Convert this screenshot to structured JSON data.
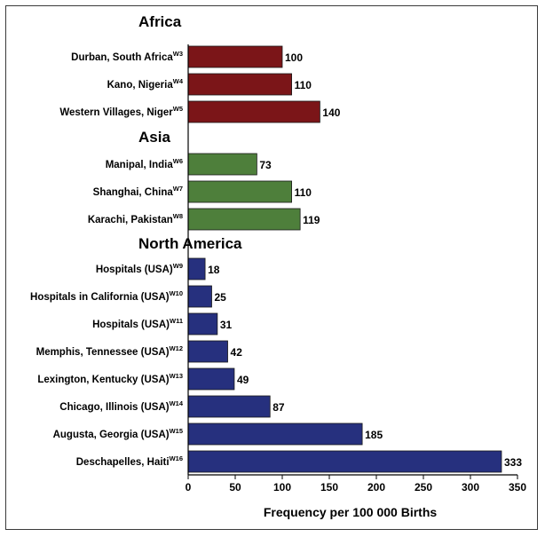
{
  "chart_data": {
    "type": "bar",
    "orientation": "horizontal",
    "xlabel": "Frequency per 100 000 Births",
    "xlim": [
      0,
      350
    ],
    "xticks": [
      0,
      50,
      100,
      150,
      200,
      250,
      300,
      350
    ],
    "grid": false,
    "groups": [
      {
        "name": "Africa",
        "color": "#7b1518",
        "bars": [
          {
            "label": "Durban, South Africa",
            "ref": "W3",
            "value": 100
          },
          {
            "label": "Kano, Nigeria",
            "ref": "W4",
            "value": 110
          },
          {
            "label": "Western Villages, Niger",
            "ref": "W5",
            "value": 140
          }
        ]
      },
      {
        "name": "Asia",
        "color": "#4e7f3b",
        "bars": [
          {
            "label": "Manipal, India",
            "ref": "W6",
            "value": 73
          },
          {
            "label": "Shanghai, China",
            "ref": "W7",
            "value": 110
          },
          {
            "label": "Karachi, Pakistan",
            "ref": "W8",
            "value": 119
          }
        ]
      },
      {
        "name": "North America",
        "color": "#26307e",
        "bars": [
          {
            "label": "Hospitals (USA)",
            "ref": "W9",
            "value": 18
          },
          {
            "label": "Hospitals in California (USA)",
            "ref": "W10",
            "value": 25
          },
          {
            "label": "Hospitals (USA)",
            "ref": "W11",
            "value": 31
          },
          {
            "label": "Memphis, Tennessee (USA)",
            "ref": "W12",
            "value": 42
          },
          {
            "label": "Lexington, Kentucky (USA)",
            "ref": "W13",
            "value": 49
          },
          {
            "label": "Chicago, Illinois (USA)",
            "ref": "W14",
            "value": 87
          },
          {
            "label": "Augusta, Georgia (USA)",
            "ref": "W15",
            "value": 185
          },
          {
            "label": "Deschapelles, Haiti",
            "ref": "W16",
            "value": 333
          }
        ]
      }
    ]
  }
}
